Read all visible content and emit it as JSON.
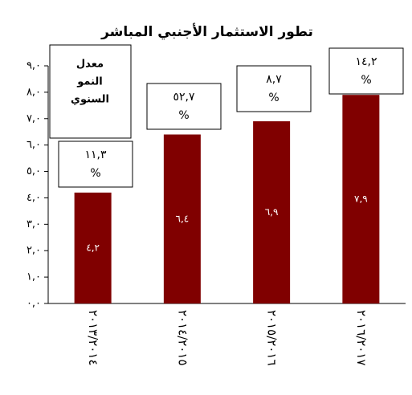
{
  "chart_data": {
    "type": "bar",
    "title": "تطور الاستثمار الأجنبي المباشر",
    "categories": [
      "٢٠١٣/٢٠١٤",
      "٢٠١٤/٢٠١٥",
      "٢٠١٥/٢٠١٦",
      "٢٠١٦/٢٠١٧"
    ],
    "values": [
      4.2,
      6.4,
      6.9,
      7.9
    ],
    "value_labels": [
      "٤,٢",
      "٦,٤",
      "٦,٩",
      "٧,٩"
    ],
    "color": "#800000",
    "ylim": [
      0,
      9
    ],
    "yticks": [
      {
        "value": 0,
        "label": "٠,٠"
      },
      {
        "value": 1,
        "label": "١,٠"
      },
      {
        "value": 2,
        "label": "٢,٠"
      },
      {
        "value": 3,
        "label": "٣,٠"
      },
      {
        "value": 4,
        "label": "٤,٠"
      },
      {
        "value": 5,
        "label": "٥,٠"
      },
      {
        "value": 6,
        "label": "٦,٠"
      },
      {
        "value": 7,
        "label": "٧,٠"
      },
      {
        "value": 8,
        "label": "٨,٠"
      },
      {
        "value": 9,
        "label": "٩,٠"
      }
    ],
    "grid": false,
    "growth_legend": [
      "معدل",
      "النمو",
      "السنوي"
    ],
    "growth_labels": [
      "١١,٣",
      "٥٢,٧",
      "٨,٧",
      "١٤,٢"
    ],
    "growth_unit": "%"
  }
}
